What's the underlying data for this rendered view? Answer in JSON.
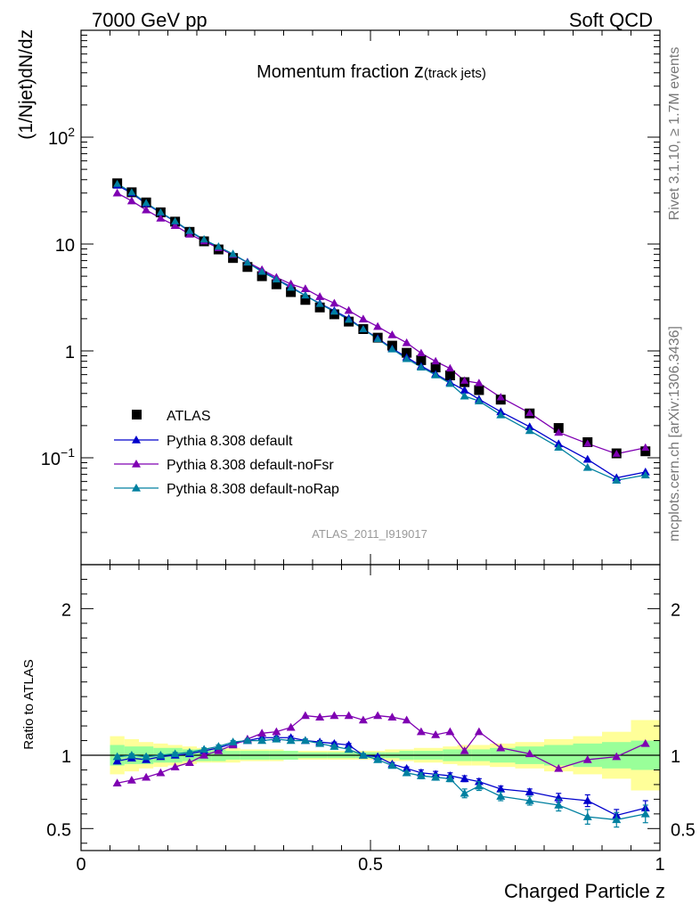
{
  "header": {
    "left": "7000 GeV pp",
    "right": "Soft QCD"
  },
  "side": {
    "rivet": "Rivet 3.1.10, ≥ 1.7M events",
    "mcplots": "mcplots.cern.ch [arXiv:1306.3436]"
  },
  "chart_data": {
    "type": "line",
    "title_main": "Momentum fraction ",
    "title_sym": "z",
    "title_sub": "(track jets)",
    "analysis_label": "ATLAS_2011_I919017",
    "xlabel": "Charged Particle z",
    "ylabel": "(1/Njet)dN/dz",
    "ratio_ylabel": "Ratio to ATLAS",
    "xlim": [
      0,
      1
    ],
    "ylim": [
      0.01,
      1000
    ],
    "yscale": "log",
    "ratio_ylim": [
      0.35,
      2.3
    ],
    "x_ticks": [
      0,
      0.5,
      1
    ],
    "x_tick_labels": [
      "0",
      "0.5",
      "1"
    ],
    "y_ticks": [
      {
        "value": 100,
        "base": "10",
        "exp": "2"
      },
      {
        "value": 10,
        "base": "10",
        "exp": ""
      },
      {
        "value": 1,
        "base": "1",
        "exp": ""
      },
      {
        "value": 0.1,
        "base": "10",
        "exp": "−1"
      }
    ],
    "ratio_ticks": [
      {
        "value": 0.5,
        "label": "0.5"
      },
      {
        "value": 1,
        "label": "1"
      },
      {
        "value": 2,
        "label": "2"
      }
    ],
    "x": [
      0.0625,
      0.0875,
      0.1125,
      0.1375,
      0.1625,
      0.1875,
      0.2125,
      0.2375,
      0.2625,
      0.2875,
      0.3125,
      0.3375,
      0.3625,
      0.3875,
      0.4125,
      0.4375,
      0.4625,
      0.4875,
      0.5125,
      0.5375,
      0.5625,
      0.5875,
      0.6125,
      0.6375,
      0.6625,
      0.6875,
      0.725,
      0.775,
      0.825,
      0.875,
      0.925,
      0.975
    ],
    "data": {
      "name": "ATLAS",
      "values": [
        37.0,
        30.5,
        24.5,
        19.8,
        16.2,
        13.0,
        10.6,
        8.9,
        7.4,
        6.1,
        5.0,
        4.2,
        3.55,
        3.0,
        2.55,
        2.2,
        1.88,
        1.6,
        1.33,
        1.12,
        0.96,
        0.82,
        0.7,
        0.59,
        0.51,
        0.43,
        0.35,
        0.26,
        0.19,
        0.14,
        0.11,
        0.115
      ],
      "band_inner": [
        0.07,
        0.06,
        0.06,
        0.05,
        0.05,
        0.04,
        0.04,
        0.04,
        0.03,
        0.03,
        0.03,
        0.03,
        0.03,
        0.02,
        0.02,
        0.02,
        0.02,
        0.02,
        0.02,
        0.02,
        0.03,
        0.03,
        0.03,
        0.04,
        0.04,
        0.04,
        0.05,
        0.06,
        0.07,
        0.08,
        0.09,
        0.1
      ],
      "band_outer": [
        0.13,
        0.11,
        0.09,
        0.08,
        0.07,
        0.06,
        0.05,
        0.05,
        0.05,
        0.04,
        0.04,
        0.04,
        0.03,
        0.03,
        0.03,
        0.03,
        0.03,
        0.03,
        0.03,
        0.04,
        0.04,
        0.05,
        0.05,
        0.06,
        0.07,
        0.07,
        0.08,
        0.09,
        0.11,
        0.13,
        0.16,
        0.24
      ]
    },
    "series": [
      {
        "name": "Pythia 8.308 default",
        "color": "#0000cc",
        "ratio": [
          0.96,
          0.98,
          0.97,
          0.99,
          1.0,
          1.01,
          1.03,
          1.05,
          1.08,
          1.1,
          1.12,
          1.12,
          1.12,
          1.1,
          1.09,
          1.08,
          1.07,
          1.0,
          0.99,
          0.94,
          0.91,
          0.88,
          0.87,
          0.86,
          0.84,
          0.82,
          0.77,
          0.75,
          0.71,
          0.69,
          0.59,
          0.64
        ],
        "err": [
          0.01,
          0.01,
          0.01,
          0.01,
          0.01,
          0.01,
          0.01,
          0.01,
          0.01,
          0.01,
          0.01,
          0.01,
          0.01,
          0.01,
          0.01,
          0.01,
          0.01,
          0.01,
          0.01,
          0.01,
          0.01,
          0.02,
          0.02,
          0.02,
          0.02,
          0.02,
          0.02,
          0.02,
          0.03,
          0.04,
          0.04,
          0.05
        ]
      },
      {
        "name": "Pythia 8.308 default-noFsr",
        "color": "#7f00b2",
        "ratio": [
          0.81,
          0.83,
          0.85,
          0.88,
          0.92,
          0.95,
          1.0,
          1.03,
          1.07,
          1.11,
          1.15,
          1.16,
          1.19,
          1.27,
          1.26,
          1.27,
          1.27,
          1.24,
          1.27,
          1.26,
          1.24,
          1.16,
          1.14,
          1.16,
          1.03,
          1.16,
          1.05,
          1.01,
          0.91,
          0.97,
          0.99,
          1.08
        ]
      },
      {
        "name": "Pythia 8.308 default-noRap",
        "color": "#0080a0",
        "ratio": [
          0.99,
          1.0,
          0.99,
          1.0,
          1.01,
          1.02,
          1.04,
          1.06,
          1.09,
          1.1,
          1.1,
          1.11,
          1.1,
          1.1,
          1.08,
          1.06,
          1.04,
          1.0,
          0.97,
          0.93,
          0.88,
          0.86,
          0.85,
          0.84,
          0.74,
          0.79,
          0.72,
          0.69,
          0.66,
          0.58,
          0.56,
          0.6
        ],
        "err": [
          0.01,
          0.01,
          0.01,
          0.01,
          0.01,
          0.01,
          0.01,
          0.01,
          0.01,
          0.01,
          0.01,
          0.01,
          0.01,
          0.01,
          0.01,
          0.01,
          0.01,
          0.01,
          0.01,
          0.01,
          0.01,
          0.02,
          0.02,
          0.02,
          0.03,
          0.03,
          0.03,
          0.03,
          0.04,
          0.05,
          0.05,
          0.06
        ]
      }
    ],
    "colors": {
      "band_inner": "#99ff99",
      "band_outer": "#ffff99",
      "data": "#000000"
    }
  }
}
